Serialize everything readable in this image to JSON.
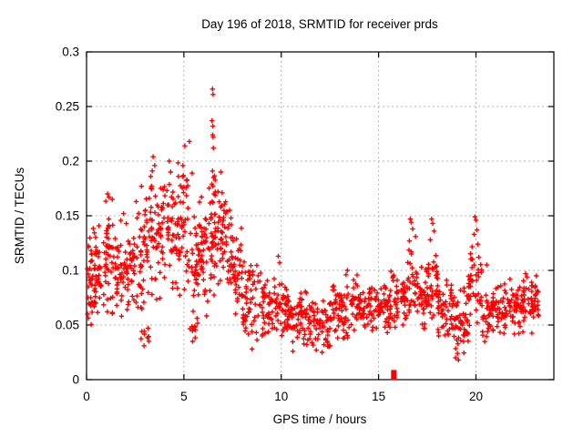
{
  "chart_data": {
    "type": "scatter",
    "title": "Day 196 of 2018, SRMTID for receiver prds",
    "xlabel": "GPS time / hours",
    "ylabel": "SRMTID / TECUs",
    "xlim": [
      0,
      24
    ],
    "ylim": [
      0,
      0.3
    ],
    "xticks": [
      0,
      5,
      10,
      15,
      20
    ],
    "xtick_labels": [
      "0",
      "5",
      "10",
      "15",
      "20"
    ],
    "yticks": [
      0,
      0.05,
      0.1,
      0.15,
      0.2,
      0.25,
      0.3
    ],
    "ytick_labels": [
      "0",
      "0.05",
      "0.1",
      "0.15",
      "0.2",
      "0.25",
      "0.3"
    ],
    "grid": true,
    "legend": "none",
    "marker": "plus",
    "marker_color": "#ff0000",
    "grid_color": "#b3b3b3",
    "axis_color": "#000000",
    "background_color": "#ffffff",
    "square_outlier_point": [
      15.78,
      0.003
    ],
    "peak_points": [
      [
        0.05,
        0.06
      ],
      [
        0.08,
        0.075
      ],
      [
        1.08,
        0.17
      ],
      [
        1.15,
        0.167
      ],
      [
        1.32,
        0.165
      ],
      [
        1.9,
        0.152
      ],
      [
        2.55,
        0.163
      ],
      [
        2.82,
        0.177
      ],
      [
        2.95,
        0.031
      ],
      [
        3.3,
        0.186
      ],
      [
        3.38,
        0.191
      ],
      [
        3.42,
        0.204
      ],
      [
        3.5,
        0.196
      ],
      [
        4.25,
        0.2
      ],
      [
        4.32,
        0.19
      ],
      [
        4.72,
        0.186
      ],
      [
        4.95,
        0.196
      ],
      [
        5.05,
        0.214
      ],
      [
        5.28,
        0.218
      ],
      [
        5.42,
        0.189
      ],
      [
        5.45,
        0.035
      ],
      [
        6.44,
        0.237
      ],
      [
        6.47,
        0.266
      ],
      [
        6.5,
        0.261
      ],
      [
        6.49,
        0.232
      ],
      [
        6.48,
        0.224
      ],
      [
        6.5,
        0.222
      ],
      [
        6.51,
        0.212
      ],
      [
        6.47,
        0.191
      ],
      [
        6.52,
        0.185
      ],
      [
        6.49,
        0.177
      ],
      [
        6.55,
        0.17
      ],
      [
        6.45,
        0.163
      ],
      [
        6.58,
        0.151
      ],
      [
        6.9,
        0.19
      ],
      [
        7.35,
        0.155
      ],
      [
        7.42,
        0.148
      ],
      [
        8.5,
        0.028
      ],
      [
        9.85,
        0.113
      ],
      [
        9.92,
        0.107
      ],
      [
        10.6,
        0.026
      ],
      [
        11.8,
        0.027
      ],
      [
        12.1,
        0.025
      ],
      [
        13.33,
        0.096
      ],
      [
        13.4,
        0.1
      ],
      [
        16.58,
        0.127
      ],
      [
        16.62,
        0.147
      ],
      [
        16.68,
        0.144
      ],
      [
        16.75,
        0.138
      ],
      [
        16.9,
        0.131
      ],
      [
        17.65,
        0.128
      ],
      [
        17.72,
        0.147
      ],
      [
        17.78,
        0.143
      ],
      [
        17.85,
        0.136
      ],
      [
        18.95,
        0.02
      ],
      [
        19.05,
        0.024
      ],
      [
        19.1,
        0.018
      ],
      [
        19.9,
        0.133
      ],
      [
        19.95,
        0.149
      ],
      [
        20.0,
        0.146
      ],
      [
        20.05,
        0.137
      ],
      [
        20.1,
        0.124
      ],
      [
        20.15,
        0.112
      ],
      [
        20.55,
        0.105
      ],
      [
        21.75,
        0.092
      ],
      [
        22.55,
        0.097
      ],
      [
        22.62,
        0.094
      ],
      [
        23.1,
        0.095
      ]
    ],
    "dense_bands_x0_x1_ymin_ymax_count": [
      [
        0.02,
        0.5,
        0.05,
        0.135,
        40
      ],
      [
        0.3,
        0.8,
        0.055,
        0.15,
        30
      ],
      [
        0.8,
        1.4,
        0.05,
        0.168,
        45
      ],
      [
        1.4,
        2.2,
        0.055,
        0.148,
        55
      ],
      [
        2.2,
        3.0,
        0.05,
        0.16,
        55
      ],
      [
        2.8,
        3.3,
        0.03,
        0.052,
        8
      ],
      [
        3.0,
        3.7,
        0.06,
        0.2,
        50
      ],
      [
        3.7,
        4.5,
        0.065,
        0.195,
        55
      ],
      [
        4.5,
        5.3,
        0.07,
        0.21,
        60
      ],
      [
        5.3,
        5.8,
        0.04,
        0.185,
        40
      ],
      [
        5.3,
        5.6,
        0.034,
        0.055,
        8
      ],
      [
        5.8,
        6.35,
        0.055,
        0.18,
        45
      ],
      [
        6.38,
        6.62,
        0.065,
        0.2,
        28
      ],
      [
        6.6,
        7.2,
        0.07,
        0.185,
        48
      ],
      [
        7.2,
        8.0,
        0.05,
        0.15,
        55
      ],
      [
        8.0,
        8.8,
        0.032,
        0.118,
        50
      ],
      [
        8.8,
        9.6,
        0.038,
        0.108,
        50
      ],
      [
        9.6,
        10.4,
        0.035,
        0.1,
        55
      ],
      [
        10.4,
        11.3,
        0.03,
        0.092,
        55
      ],
      [
        11.3,
        12.6,
        0.024,
        0.078,
        75
      ],
      [
        12.6,
        13.6,
        0.035,
        0.092,
        60
      ],
      [
        13.6,
        14.6,
        0.04,
        0.1,
        60
      ],
      [
        14.6,
        15.6,
        0.04,
        0.095,
        60
      ],
      [
        15.6,
        16.5,
        0.042,
        0.105,
        55
      ],
      [
        16.5,
        17.05,
        0.048,
        0.125,
        35
      ],
      [
        17.05,
        17.55,
        0.04,
        0.112,
        35
      ],
      [
        17.55,
        18.05,
        0.048,
        0.125,
        35
      ],
      [
        18.05,
        18.85,
        0.035,
        0.098,
        50
      ],
      [
        18.85,
        19.6,
        0.02,
        0.085,
        50
      ],
      [
        19.6,
        20.3,
        0.045,
        0.128,
        45
      ],
      [
        20.3,
        21.2,
        0.032,
        0.092,
        55
      ],
      [
        21.2,
        22.1,
        0.038,
        0.09,
        55
      ],
      [
        22.1,
        22.9,
        0.04,
        0.098,
        50
      ],
      [
        22.9,
        23.25,
        0.045,
        0.095,
        25
      ]
    ]
  }
}
